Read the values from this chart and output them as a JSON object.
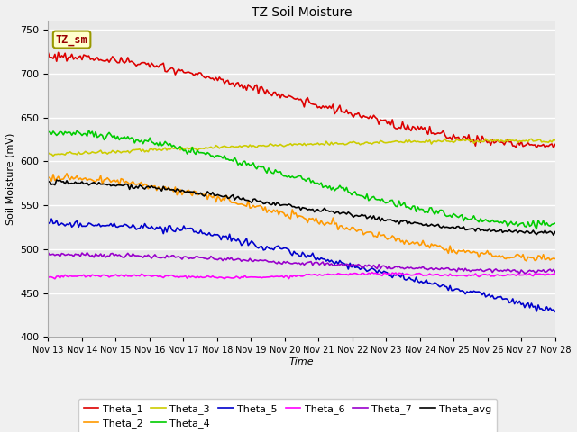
{
  "title": "TZ Soil Moisture",
  "xlabel": "Time",
  "ylabel": "Soil Moisture (mV)",
  "ylim": [
    400,
    760
  ],
  "yticks": [
    400,
    450,
    500,
    550,
    600,
    650,
    700,
    750
  ],
  "background_color": "#e8e8e8",
  "fig_background": "#f0f0f0",
  "legend_label": "TZ_sm",
  "legend_box_facecolor": "#ffffcc",
  "legend_box_edgecolor": "#999900",
  "legend_text_color": "#990000",
  "series_order": [
    "Theta_1",
    "Theta_2",
    "Theta_3",
    "Theta_4",
    "Theta_5",
    "Theta_6",
    "Theta_7",
    "Theta_avg"
  ],
  "series": {
    "Theta_1": {
      "color": "#dd0000"
    },
    "Theta_2": {
      "color": "#ff9900"
    },
    "Theta_3": {
      "color": "#cccc00"
    },
    "Theta_4": {
      "color": "#00cc00"
    },
    "Theta_5": {
      "color": "#0000cc"
    },
    "Theta_6": {
      "color": "#ff00ff"
    },
    "Theta_7": {
      "color": "#9900cc"
    },
    "Theta_avg": {
      "color": "#000000"
    }
  }
}
